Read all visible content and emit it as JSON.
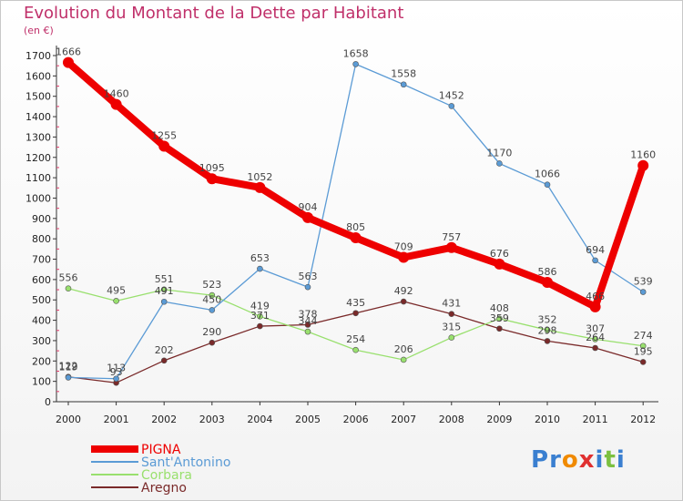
{
  "chart_data": {
    "type": "line",
    "title": "Evolution du Montant de la Dette par Habitant",
    "unit_label": "(en €)",
    "x": [
      "2000",
      "2001",
      "2002",
      "2003",
      "2004",
      "2005",
      "2006",
      "2007",
      "2008",
      "2009",
      "2010",
      "2011",
      "2012"
    ],
    "ylim": [
      0,
      1700
    ],
    "yticks": [
      0,
      100,
      200,
      300,
      400,
      500,
      600,
      700,
      800,
      900,
      1000,
      1100,
      1200,
      1300,
      1400,
      1500,
      1600,
      1700
    ],
    "grid": false,
    "legend_position": "bottom-left",
    "series": [
      {
        "name": "PIGNA",
        "color": "#ee0000",
        "values": [
          1666,
          1460,
          1255,
          1095,
          1052,
          904,
          805,
          709,
          757,
          676,
          586,
          466,
          1160
        ]
      },
      {
        "name": "Sant'Antonino",
        "color": "#5b9bd5",
        "values": [
          119,
          113,
          491,
          450,
          653,
          563,
          1658,
          1558,
          1452,
          1170,
          1066,
          694,
          539
        ]
      },
      {
        "name": "Corbara",
        "color": "#99e06e",
        "values": [
          556,
          495,
          551,
          523,
          419,
          344,
          254,
          206,
          315,
          408,
          352,
          307,
          274
        ]
      },
      {
        "name": "Aregno",
        "color": "#7a2a2a",
        "values": [
          122,
          93,
          202,
          290,
          371,
          378,
          435,
          492,
          431,
          359,
          298,
          264,
          195
        ]
      }
    ]
  },
  "logo": {
    "text": "Proxiti",
    "letters": [
      {
        "ch": "P",
        "color": "#3a7fd0"
      },
      {
        "ch": "r",
        "color": "#3a7fd0"
      },
      {
        "ch": "o",
        "color": "#f08a00"
      },
      {
        "ch": "x",
        "color": "#e03030"
      },
      {
        "ch": "i",
        "color": "#3a7fd0"
      },
      {
        "ch": "t",
        "color": "#7cc040"
      },
      {
        "ch": "i",
        "color": "#3a7fd0"
      }
    ]
  }
}
